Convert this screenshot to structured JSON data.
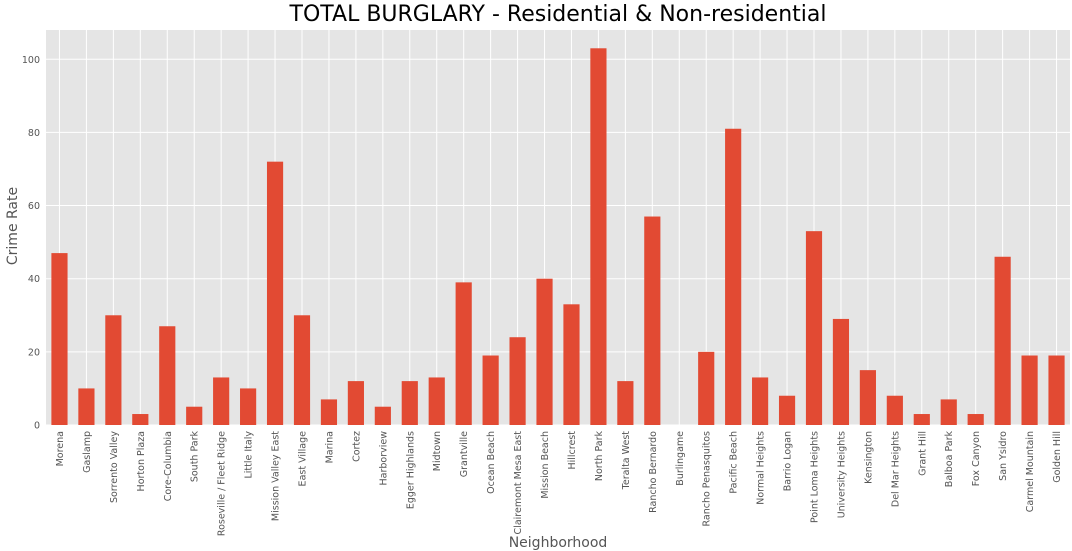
{
  "chart_data": {
    "type": "bar",
    "title": "TOTAL BURGLARY - Residential & Non-residential",
    "xlabel": "Neighborhood",
    "ylabel": "Crime Rate",
    "ylim": [
      0,
      108
    ],
    "yticks": [
      0,
      20,
      40,
      60,
      80,
      100
    ],
    "grid": true,
    "legend": "none",
    "categories": [
      "Morena",
      "Gaslamp",
      "Sorrento Valley",
      "Horton Plaza",
      "Core-Columbia",
      "South Park",
      "Roseville / Fleet Ridge",
      "Little Italy",
      "Mission Valley East",
      "East Village",
      "Marina",
      "Cortez",
      "Harborview",
      "Egger Highlands",
      "Midtown",
      "Grantville",
      "Ocean Beach",
      "Clairemont Mesa East",
      "Mission Beach",
      "Hillcrest",
      "North Park",
      "Teralta West",
      "Rancho Bernardo",
      "Burlingame",
      "Rancho Penasquitos",
      "Pacific Beach",
      "Normal Heights",
      "Barrio Logan",
      "Point Loma Heights",
      "University Heights",
      "Kensington",
      "Del Mar Heights",
      "Grant Hill",
      "Balboa Park",
      "Fox Canyon",
      "San Ysidro",
      "Carmel Mountain",
      "Golden Hill"
    ],
    "values": [
      47,
      10,
      30,
      3,
      27,
      5,
      13,
      10,
      72,
      30,
      7,
      12,
      5,
      12,
      13,
      39,
      19,
      24,
      40,
      33,
      103,
      12,
      57,
      0,
      20,
      81,
      13,
      8,
      53,
      29,
      15,
      8,
      3,
      7,
      3,
      46,
      19,
      19
    ],
    "colors": {
      "bar": "#E24A33",
      "plot_background": "#E5E5E5",
      "grid": "#FFFFFF"
    }
  }
}
